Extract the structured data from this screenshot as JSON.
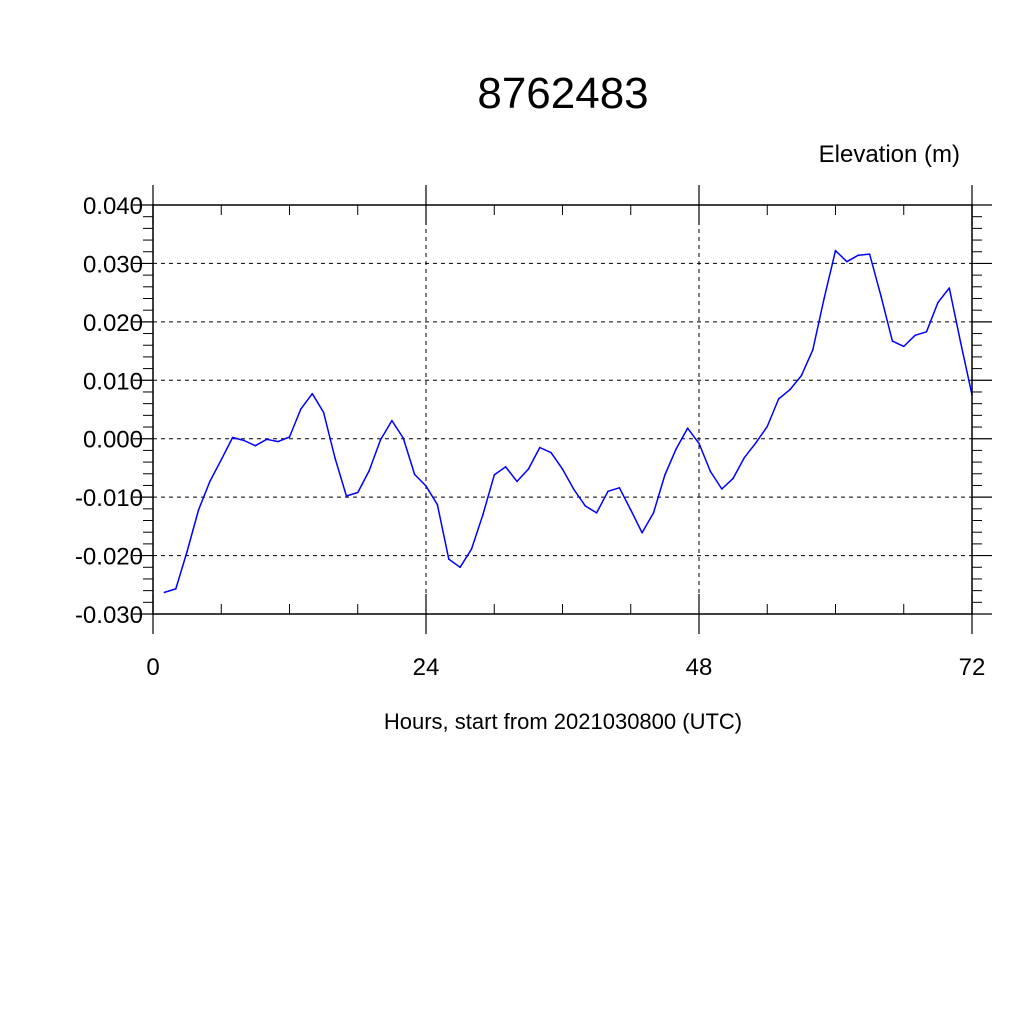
{
  "chart_data": {
    "type": "line",
    "title": "8762483",
    "ylabel": "Elevation (m)",
    "xlabel": "Hours, start from 2021030800 (UTC)",
    "xlim": [
      0,
      72
    ],
    "ylim": [
      -0.03,
      0.04
    ],
    "x_ticks": [
      0,
      24,
      48,
      72
    ],
    "x_tick_labels": [
      "0",
      "24",
      "48",
      "72"
    ],
    "y_ticks": [
      -0.03,
      -0.02,
      -0.01,
      0.0,
      0.01,
      0.02,
      0.03,
      0.04
    ],
    "y_tick_labels": [
      "-0.030",
      "-0.020",
      "-0.010",
      "0.000",
      "0.010",
      "0.020",
      "0.030",
      "0.040"
    ],
    "grid": true,
    "grid_style": "dashed",
    "series": [
      {
        "color": "#0000ff",
        "x": [
          1,
          2,
          3,
          4,
          5,
          6,
          7,
          8,
          9,
          10,
          11,
          12,
          13,
          14,
          15,
          16,
          17,
          18,
          19,
          20,
          21,
          22,
          23,
          24,
          25,
          26,
          27,
          28,
          29,
          30,
          31,
          32,
          33,
          34,
          35,
          36,
          37,
          38,
          39,
          40,
          41,
          42,
          43,
          44,
          45,
          46,
          47,
          48,
          49,
          50,
          51,
          52,
          53,
          54,
          55,
          56,
          57,
          58,
          59,
          60,
          61,
          62,
          63,
          64,
          65,
          66,
          67,
          68,
          69,
          70,
          71,
          72
        ],
        "values": [
          -0.0263,
          -0.0257,
          -0.0193,
          -0.0122,
          -0.0073,
          -0.0036,
          0.0002,
          -0.0003,
          -0.0012,
          -0.0001,
          -0.0005,
          0.0003,
          0.0051,
          0.0077,
          0.0045,
          -0.0033,
          -0.0098,
          -0.0092,
          -0.0055,
          -0.0002,
          0.0031,
          0.0001,
          -0.0061,
          -0.0081,
          -0.0113,
          -0.0206,
          -0.022,
          -0.0189,
          -0.013,
          -0.0062,
          -0.0048,
          -0.0073,
          -0.0052,
          -0.0015,
          -0.0024,
          -0.0052,
          -0.0087,
          -0.0115,
          -0.0127,
          -0.009,
          -0.0084,
          -0.0122,
          -0.0161,
          -0.0127,
          -0.0062,
          -0.0017,
          0.0018,
          -0.0008,
          -0.0056,
          -0.0086,
          -0.0068,
          -0.0032,
          -0.0007,
          0.0021,
          0.0068,
          0.0084,
          0.0108,
          0.0152,
          0.024,
          0.0322,
          0.0303,
          0.0314,
          0.0316,
          0.0244,
          0.0167,
          0.0158,
          0.0177,
          0.0183,
          0.0233,
          0.0258,
          0.0165,
          0.0075
        ]
      }
    ]
  }
}
